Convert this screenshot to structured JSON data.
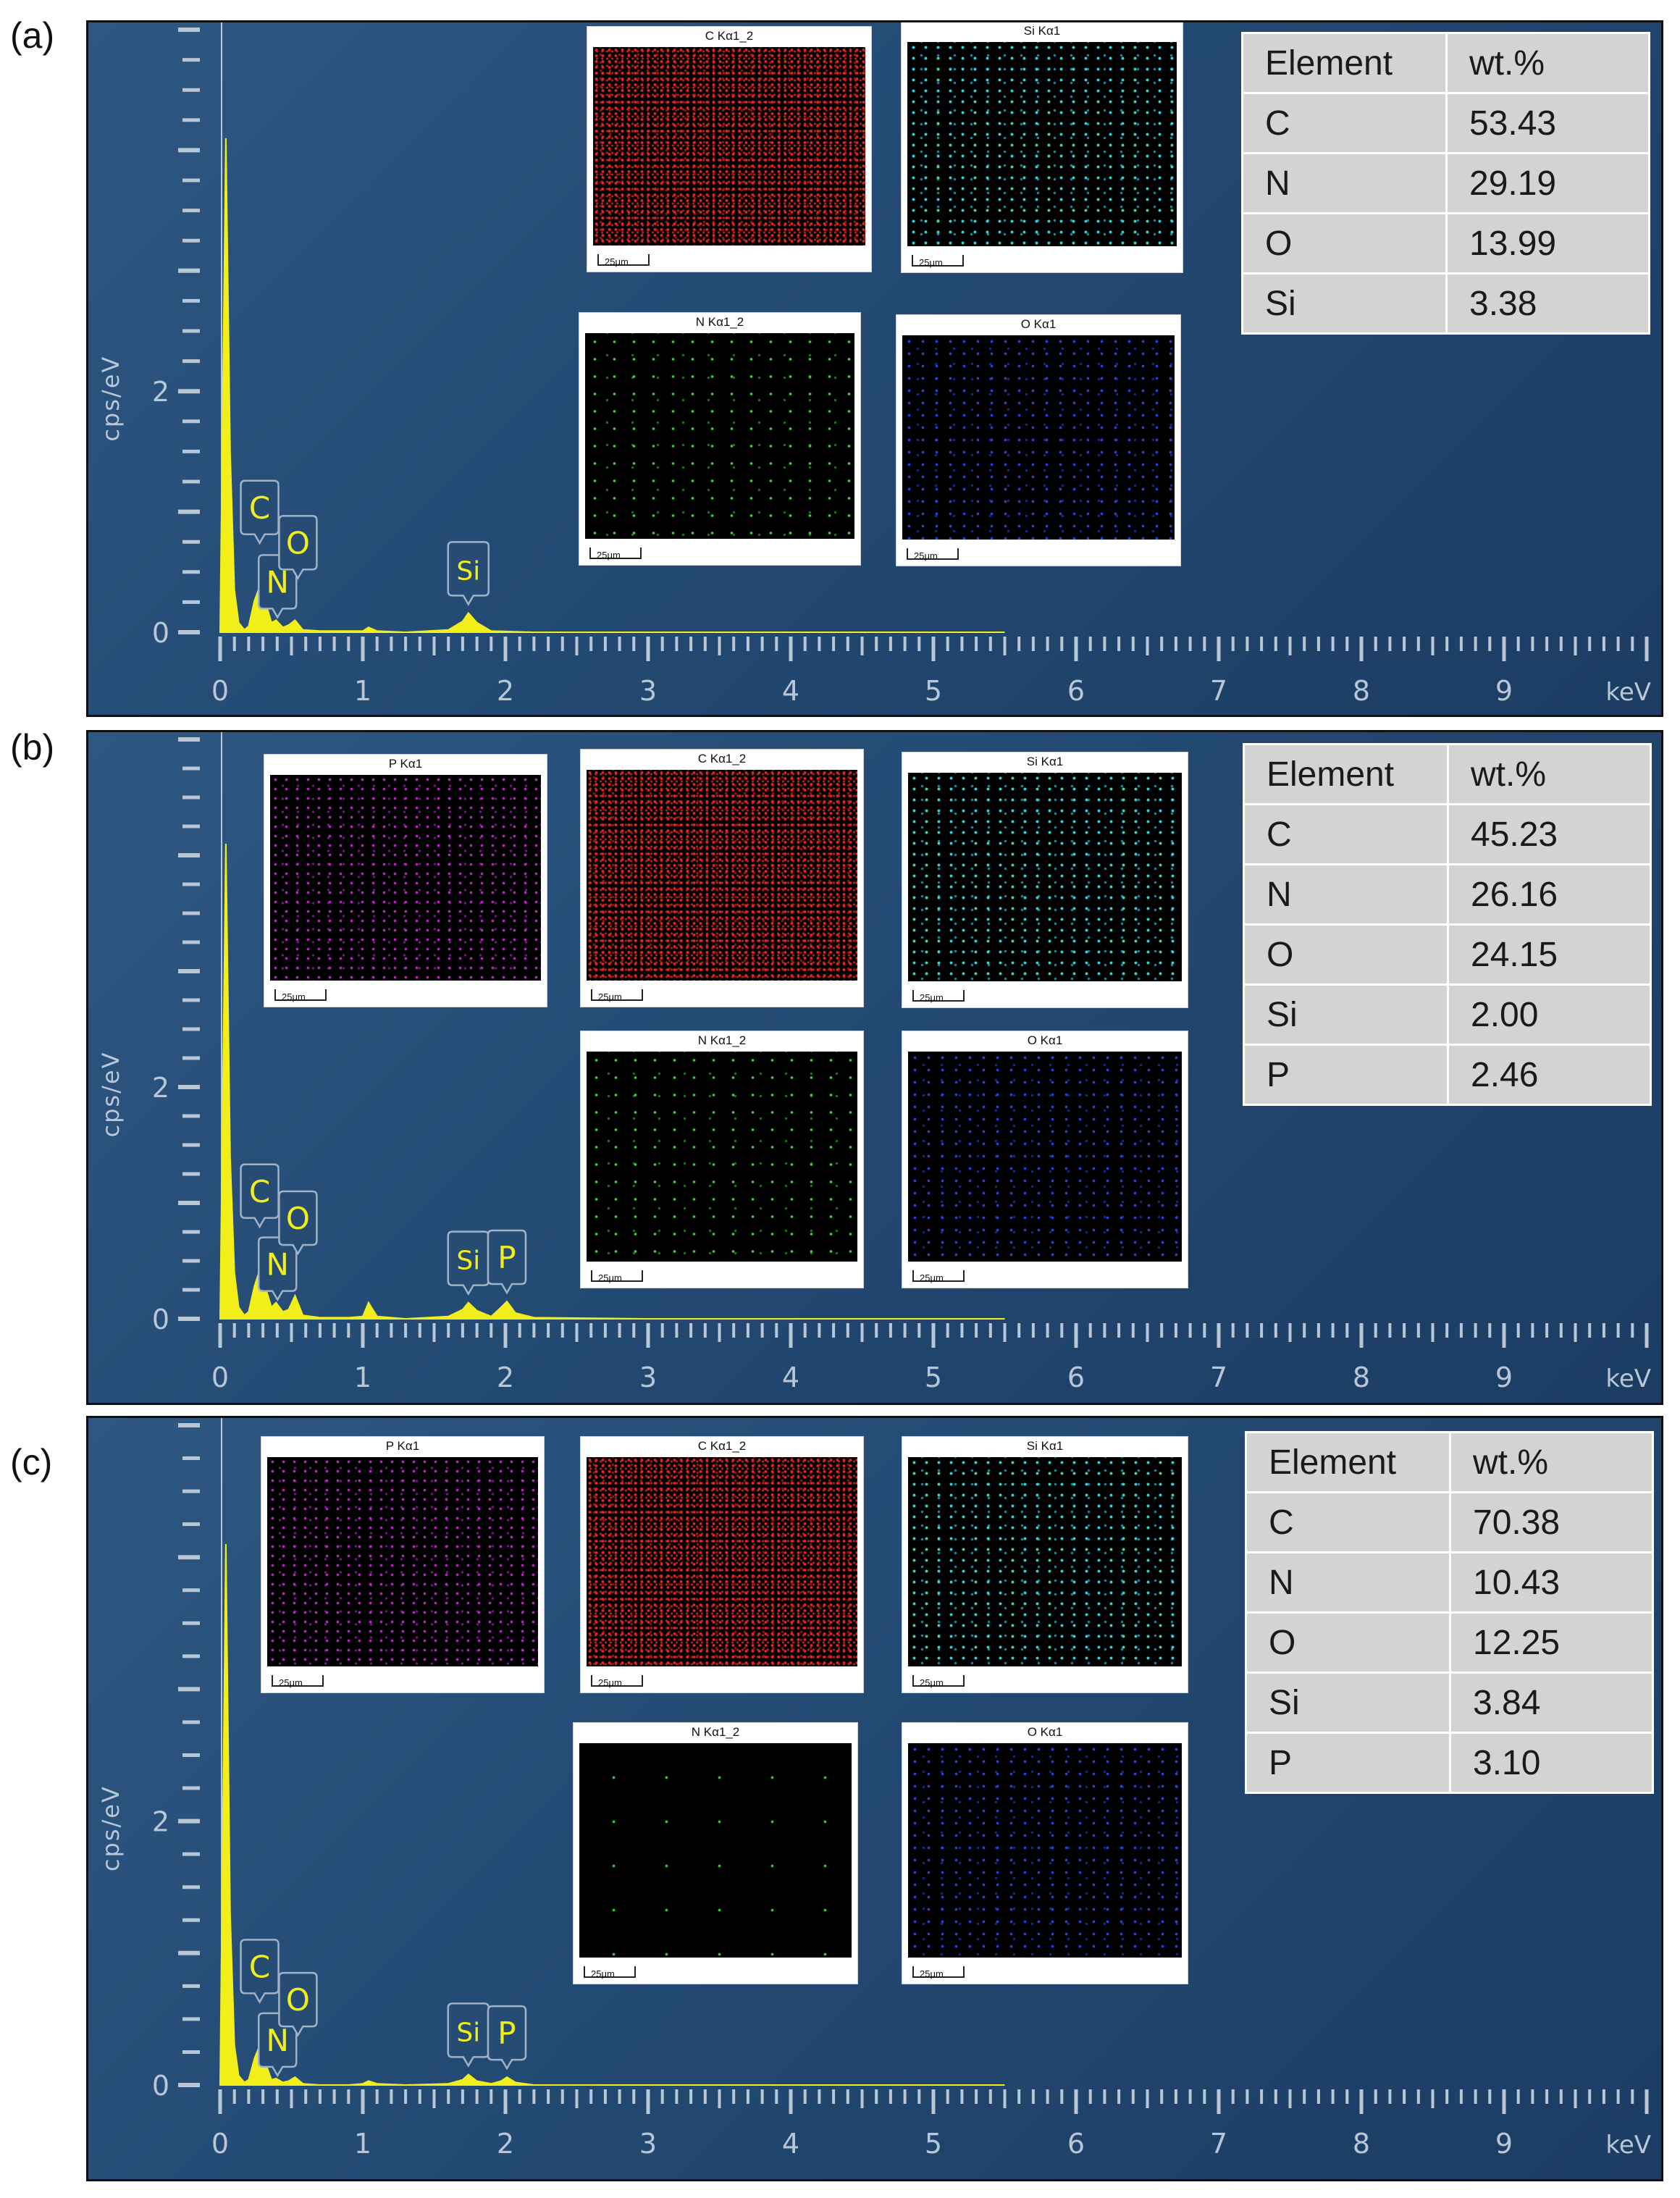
{
  "chart_data": [
    {
      "type": "line",
      "panel_label": "(a)",
      "ylabel": "cps/eV",
      "xlabel": "keV",
      "xlim": [
        0,
        10
      ],
      "ylim": [
        0,
        5
      ],
      "x_ticks": [
        "0",
        "1",
        "2",
        "3",
        "4",
        "5",
        "6",
        "7",
        "8",
        "9"
      ],
      "y_ticks": [
        "0",
        "2"
      ],
      "series": [
        {
          "x": [
            0.0,
            0.04,
            0.07,
            0.1,
            0.13,
            0.17,
            0.2,
            0.24,
            0.277,
            0.32,
            0.36,
            0.392,
            0.44,
            0.48,
            0.525,
            0.58,
            0.7,
            0.9,
            1.0,
            1.04,
            1.1,
            1.3,
            1.6,
            1.7,
            1.74,
            1.8,
            1.9,
            2.2,
            3.0,
            4.0,
            5.5
          ],
          "y": [
            0,
            4.1,
            1.5,
            0.35,
            0.08,
            0.02,
            0.05,
            0.26,
            0.38,
            0.24,
            0.08,
            0.1,
            0.04,
            0.06,
            0.1,
            0.02,
            0.01,
            0.01,
            0.01,
            0.04,
            0.01,
            0.0,
            0.02,
            0.09,
            0.16,
            0.08,
            0.01,
            0.0,
            0.0,
            0.0,
            0.0
          ]
        }
      ],
      "peak_labels": [
        {
          "label": "C",
          "x": 0.277
        },
        {
          "label": "N",
          "x": 0.392
        },
        {
          "label": "O",
          "x": 0.525
        },
        {
          "label": "Si",
          "x": 1.74
        }
      ],
      "map_titles": [
        "C Kα1_2",
        "Si Kα1",
        "N Kα1_2",
        "O Kα1"
      ],
      "scale_bar": "25μm",
      "table": {
        "headers": [
          "Element",
          "wt.%"
        ],
        "rows": [
          [
            "C",
            "53.43"
          ],
          [
            "N",
            "29.19"
          ],
          [
            "O",
            "13.99"
          ],
          [
            "Si",
            "3.38"
          ]
        ]
      }
    },
    {
      "type": "line",
      "panel_label": "(b)",
      "ylabel": "cps/eV",
      "xlabel": "keV",
      "xlim": [
        0,
        10
      ],
      "ylim": [
        0,
        5
      ],
      "x_ticks": [
        "0",
        "1",
        "2",
        "3",
        "4",
        "5",
        "6",
        "7",
        "8",
        "9"
      ],
      "y_ticks": [
        "0",
        "2"
      ],
      "series": [
        {
          "x": [
            0.0,
            0.04,
            0.07,
            0.1,
            0.13,
            0.17,
            0.2,
            0.24,
            0.277,
            0.32,
            0.36,
            0.392,
            0.44,
            0.48,
            0.525,
            0.58,
            0.7,
            0.9,
            1.0,
            1.04,
            1.1,
            1.3,
            1.6,
            1.7,
            1.74,
            1.8,
            1.9,
            1.97,
            2.01,
            2.07,
            2.2,
            3.0,
            4.0,
            5.5
          ],
          "y": [
            0,
            4.1,
            1.4,
            0.4,
            0.1,
            0.03,
            0.06,
            0.28,
            0.42,
            0.26,
            0.1,
            0.14,
            0.06,
            0.08,
            0.2,
            0.03,
            0.01,
            0.01,
            0.02,
            0.14,
            0.02,
            0.0,
            0.02,
            0.08,
            0.14,
            0.07,
            0.02,
            0.1,
            0.15,
            0.05,
            0.01,
            0.0,
            0.0,
            0.0
          ]
        }
      ],
      "peak_labels": [
        {
          "label": "C",
          "x": 0.277
        },
        {
          "label": "N",
          "x": 0.392
        },
        {
          "label": "O",
          "x": 0.525
        },
        {
          "label": "Si",
          "x": 1.74
        },
        {
          "label": "P",
          "x": 2.01
        }
      ],
      "map_titles": [
        "P Kα1",
        "C Kα1_2",
        "Si Kα1",
        "N Kα1_2",
        "O Kα1"
      ],
      "scale_bar": "25μm",
      "table": {
        "headers": [
          "Element",
          "wt.%"
        ],
        "rows": [
          [
            "C",
            "45.23"
          ],
          [
            "N",
            "26.16"
          ],
          [
            "O",
            "24.15"
          ],
          [
            "Si",
            "2.00"
          ],
          [
            "P",
            "2.46"
          ]
        ]
      }
    },
    {
      "type": "line",
      "panel_label": "(c)",
      "ylabel": "cps/eV",
      "xlabel": "keV",
      "xlim": [
        0,
        10
      ],
      "ylim": [
        0,
        5
      ],
      "x_ticks": [
        "0",
        "1",
        "2",
        "3",
        "4",
        "5",
        "6",
        "7",
        "8",
        "9"
      ],
      "y_ticks": [
        "0",
        "2"
      ],
      "series": [
        {
          "x": [
            0.0,
            0.04,
            0.07,
            0.1,
            0.13,
            0.17,
            0.2,
            0.24,
            0.277,
            0.32,
            0.36,
            0.392,
            0.44,
            0.48,
            0.525,
            0.58,
            0.7,
            0.9,
            1.0,
            1.04,
            1.1,
            1.3,
            1.6,
            1.7,
            1.74,
            1.8,
            1.9,
            1.97,
            2.01,
            2.07,
            2.2,
            3.0,
            4.0,
            5.5
          ],
          "y": [
            0,
            4.1,
            1.3,
            0.3,
            0.07,
            0.02,
            0.04,
            0.2,
            0.3,
            0.16,
            0.04,
            0.05,
            0.02,
            0.03,
            0.06,
            0.01,
            0.0,
            0.0,
            0.01,
            0.03,
            0.01,
            0.0,
            0.01,
            0.04,
            0.08,
            0.03,
            0.01,
            0.03,
            0.06,
            0.02,
            0.0,
            0.0,
            0.0,
            0.0
          ]
        }
      ],
      "peak_labels": [
        {
          "label": "C",
          "x": 0.277
        },
        {
          "label": "N",
          "x": 0.392
        },
        {
          "label": "O",
          "x": 0.525
        },
        {
          "label": "Si",
          "x": 1.74
        },
        {
          "label": "P",
          "x": 2.01
        }
      ],
      "map_titles": [
        "P Kα1",
        "C Kα1_2",
        "Si Kα1",
        "N Kα1_2",
        "O Kα1"
      ],
      "scale_bar": "25μm",
      "table": {
        "headers": [
          "Element",
          "wt.%"
        ],
        "rows": [
          [
            "C",
            "70.38"
          ],
          [
            "N",
            "10.43"
          ],
          [
            "O",
            "12.25"
          ],
          [
            "Si",
            "3.84"
          ],
          [
            "P",
            "3.10"
          ]
        ]
      }
    }
  ],
  "colors": {
    "panel_background": "#234a73",
    "spectrum_fill": "#f2ee1a",
    "axis": "#b8c6d6",
    "peak_label_text": "#f2ee1a",
    "table_background": "#d3d3d3"
  }
}
